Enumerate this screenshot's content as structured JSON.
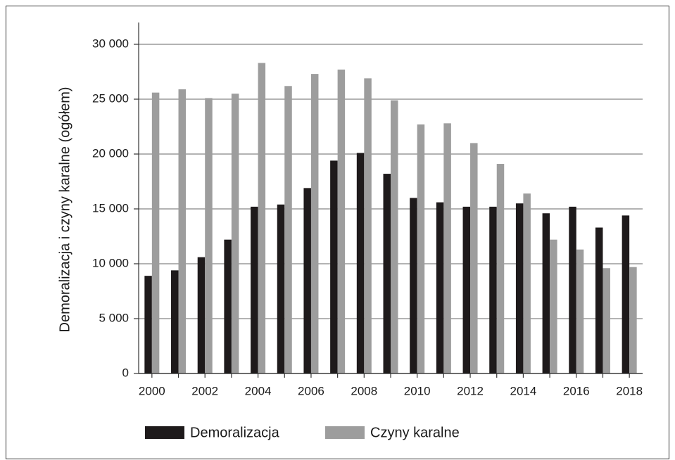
{
  "chart_data": {
    "type": "bar",
    "y_label": "Demoralizacja i czyny karalne (ogółem)",
    "categories": [
      "2000",
      null,
      "2002",
      null,
      "2004",
      null,
      "2006",
      null,
      "2008",
      null,
      "2010",
      null,
      "2012",
      null,
      "2014",
      null,
      "2016",
      null,
      "2018"
    ],
    "series": [
      {
        "name": "Demoralizacja",
        "color": "#1e1a1b",
        "values": [
          8900,
          9400,
          10600,
          12200,
          15200,
          15400,
          16900,
          19400,
          20100,
          18200,
          16000,
          15600,
          15200,
          15200,
          15500,
          14600,
          15200,
          13300,
          14400
        ]
      },
      {
        "name": "Czyny karalne",
        "color": "#9d9d9d",
        "values": [
          25600,
          25900,
          25100,
          25500,
          28300,
          26200,
          27300,
          27700,
          26900,
          24900,
          22700,
          22800,
          21000,
          19100,
          16400,
          12200,
          11300,
          9600,
          9700
        ]
      }
    ],
    "ylim": [
      0,
      30000
    ],
    "yticks": [
      0,
      {
        "value": 5000,
        "label": "5 000"
      },
      {
        "value": 10000,
        "label": "10 000"
      },
      {
        "value": 15000,
        "label": "15 000"
      },
      {
        "value": 20000,
        "label": "20 000"
      },
      {
        "value": 25000,
        "label": "25 000"
      },
      {
        "value": 30000,
        "label": "30 000"
      }
    ],
    "grid": true,
    "legend": "bottom"
  }
}
